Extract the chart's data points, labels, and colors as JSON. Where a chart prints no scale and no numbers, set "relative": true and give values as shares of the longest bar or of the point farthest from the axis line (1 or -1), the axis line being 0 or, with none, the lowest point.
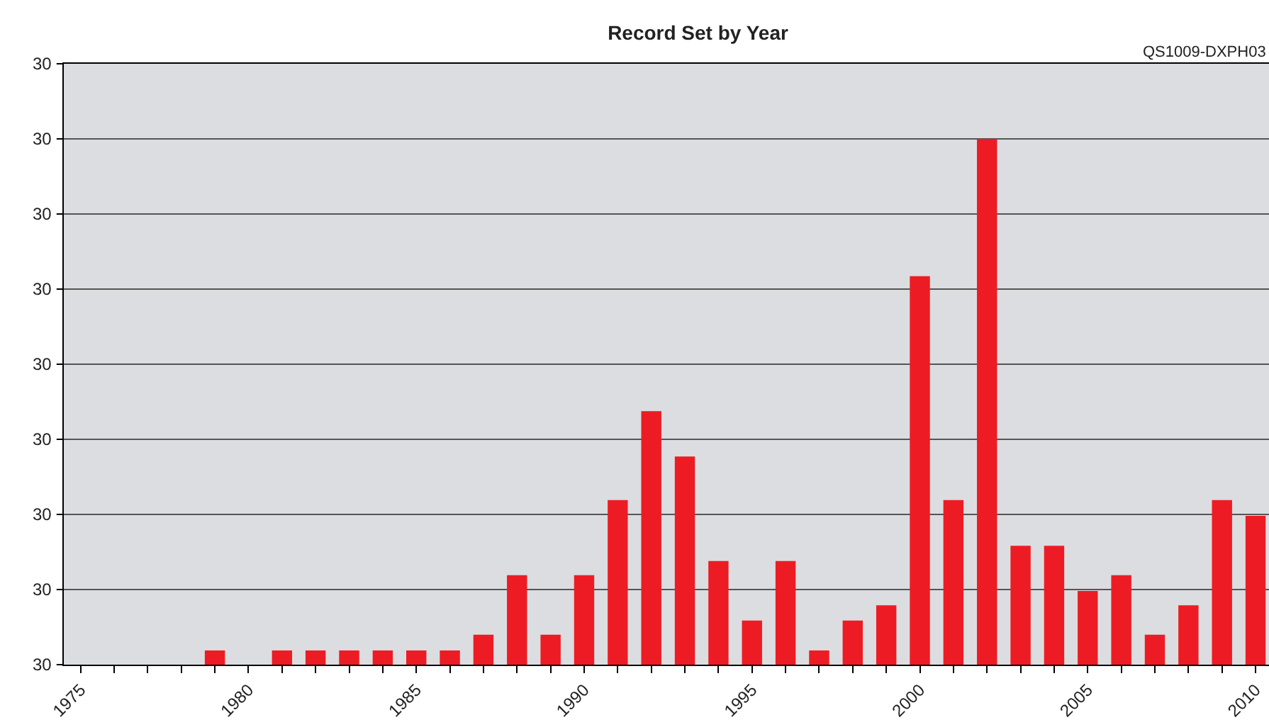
{
  "chart_data": {
    "type": "bar",
    "title": "Record Set by Year",
    "relative": true,
    "annotations": [
      "QS1009-DXPH03",
      "30",
      "30",
      "30",
      "30",
      "30",
      "30",
      "30",
      "30",
      "30"
    ],
    "x": [
      1979,
      1981,
      1982,
      1983,
      1984,
      1985,
      1986,
      1987,
      1988,
      1989,
      1990,
      1991,
      1992,
      1993,
      1994,
      1995,
      1996,
      1997,
      1998,
      1999,
      2000,
      2001,
      2002,
      2003,
      2004,
      2005,
      2006,
      2007,
      2008,
      2009,
      2010
    ],
    "values": [
      0.027,
      0.027,
      0.027,
      0.027,
      0.027,
      0.027,
      0.027,
      0.057,
      0.17,
      0.057,
      0.17,
      0.313,
      0.482,
      0.396,
      0.197,
      0.084,
      0.197,
      0.027,
      0.084,
      0.113,
      0.739,
      0.313,
      1,
      0.226,
      0.226,
      0.14,
      0.17,
      0.057,
      0.113,
      0.313,
      0.283
    ],
    "color": "#ed1c24",
    "xlim": [
      1974.5,
      2010.4
    ],
    "xticks": [
      1975,
      {
        "value": 1976,
        "label": null
      },
      {
        "value": 1977,
        "label": null
      },
      {
        "value": 1978,
        "label": null
      },
      {
        "value": 1979,
        "label": null
      },
      1980,
      {
        "value": 1981,
        "label": null
      },
      {
        "value": 1982,
        "label": null
      },
      {
        "value": 1983,
        "label": null
      },
      {
        "value": 1984,
        "label": null
      },
      1985,
      {
        "value": 1986,
        "label": null
      },
      {
        "value": 1987,
        "label": null
      },
      {
        "value": 1988,
        "label": null
      },
      {
        "value": 1989,
        "label": null
      },
      1990,
      {
        "value": 1991,
        "label": null
      },
      {
        "value": 1992,
        "label": null
      },
      {
        "value": 1993,
        "label": null
      },
      {
        "value": 1994,
        "label": null
      },
      1995,
      {
        "value": 1996,
        "label": null
      },
      {
        "value": 1997,
        "label": null
      },
      {
        "value": 1998,
        "label": null
      },
      {
        "value": 1999,
        "label": null
      },
      2000,
      {
        "value": 2001,
        "label": null
      },
      {
        "value": 2002,
        "label": null
      },
      {
        "value": 2003,
        "label": null
      },
      {
        "value": 2004,
        "label": null
      },
      2005,
      {
        "value": 2006,
        "label": null
      },
      {
        "value": 2007,
        "label": null
      },
      {
        "value": 2008,
        "label": null
      },
      {
        "value": 2009,
        "label": null
      },
      2010
    ],
    "grid": "y"
  }
}
